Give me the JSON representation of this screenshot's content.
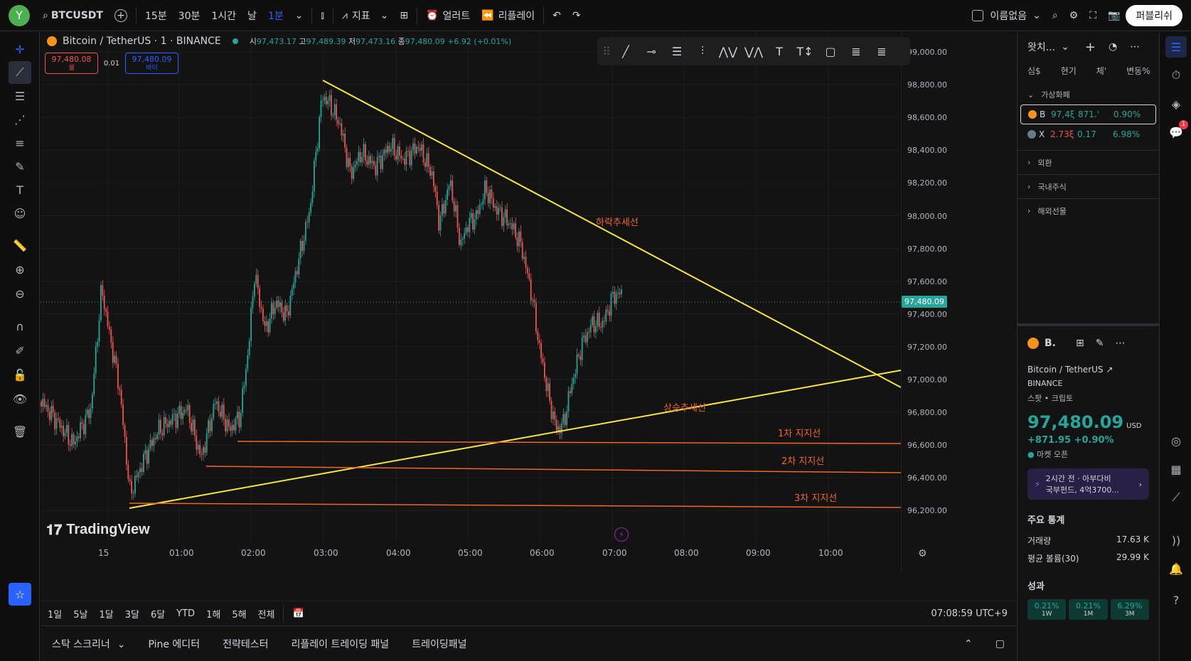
{
  "topbar": {
    "avatar": "Y",
    "symbol": "BTCUSDT",
    "intervals": [
      "15분",
      "30분",
      "1시간",
      "날",
      "1분"
    ],
    "indicators": "지표",
    "alert": "얼러트",
    "replay": "리플레이",
    "layout_name": "이름없음",
    "publish": "퍼블리쉬"
  },
  "legend": {
    "title": "Bitcoin / TetherUS · 1 · BINANCE",
    "o_label": "시",
    "o": "97,473.17",
    "h_label": "고",
    "h": "97,489.39",
    "l_label": "저",
    "l": "97,473.16",
    "c_label": "종",
    "c": "97,480.09",
    "chg": "+6.92 (+0.01%)",
    "sell_price": "97,480.08",
    "sell_label": "셀",
    "spread": "0.01",
    "buy_price": "97,480.09",
    "buy_label": "바이"
  },
  "price_axis": [
    "99,000.00",
    "98,800.00",
    "98,600.00",
    "98,400.00",
    "98,200.00",
    "98,000.00",
    "97,800.00",
    "97,600.00",
    "97,400.00",
    "97,200.00",
    "97,000.00",
    "96,800.00",
    "96,600.00",
    "96,400.00",
    "96,200.00"
  ],
  "current_price": "97,480.09",
  "time_axis": [
    "15",
    "01:00",
    "02:00",
    "03:00",
    "04:00",
    "05:00",
    "06:00",
    "07:00",
    "08:00",
    "09:00",
    "10:00"
  ],
  "annotations": {
    "downtrend": "하락추세선",
    "uptrend": "상승추세선",
    "s1": "1차 지지선",
    "s2": "2차 지지선",
    "s3": "3차 지지선"
  },
  "watermark": "TradingView",
  "timeframes": [
    "1일",
    "5날",
    "1달",
    "3달",
    "6달",
    "YTD",
    "1해",
    "5해",
    "전체"
  ],
  "clock": "07:08:59 UTC+9",
  "bottom_tabs": [
    "스탁 스크리너",
    "Pine 에디터",
    "전략테스터",
    "리플레이 트레이딩 패널",
    "트레이딩패널"
  ],
  "watchlist": {
    "title": "왓치...",
    "cols": [
      "심$",
      "현기",
      "체'",
      "변동%"
    ],
    "section_crypto": "가상화폐",
    "rows": [
      {
        "sym": "B",
        "last": "97,4ξ",
        "chg": "871.'",
        "pct": "0.90%",
        "color": "#26a69a"
      },
      {
        "sym": "X",
        "last": "2.73ξ",
        "chg": "0.17",
        "pct": "6.98%",
        "color": "#ef5350"
      }
    ],
    "sections": [
      "외환",
      "국내주식",
      "해외선물"
    ]
  },
  "details": {
    "sym": "B.",
    "name": "Bitcoin / TetherUS",
    "exchange": "BINANCE",
    "type": "스팟 • 크립토",
    "price": "97,480.09",
    "currency": "USD",
    "change": "+871.95 +0.90%",
    "market": "마켓 오픈",
    "news_line1": "2시간 전 · 아부다비",
    "news_line2": "국부펀드, 4억3700...",
    "stats_title": "주요 통계",
    "vol_label": "거래량",
    "vol": "17.63 K",
    "avgvol_label": "평균 볼륨(30)",
    "avgvol": "29.99 K",
    "perf_title": "성과",
    "perf": [
      {
        "v": "0.21%",
        "p": "1W"
      },
      {
        "v": "0.21%",
        "p": "1M"
      },
      {
        "v": "6.29%",
        "p": "3M"
      }
    ]
  },
  "notif_count": "1"
}
